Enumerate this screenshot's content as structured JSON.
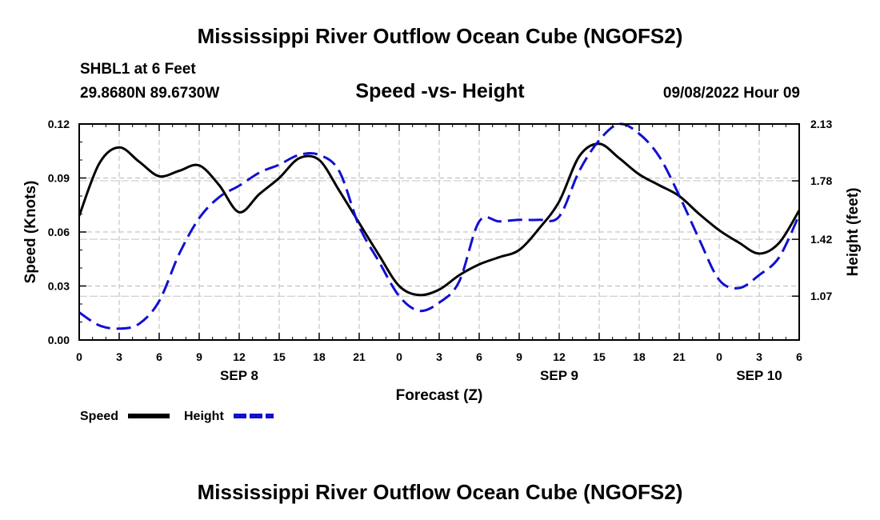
{
  "header": {
    "title": "Mississippi River Outflow Ocean Cube (NGOFS2)",
    "station": "SHBL1 at 6 Feet",
    "coordinates": "29.8680N  89.6730W",
    "subtitle": "Speed -vs- Height",
    "datetime": "09/08/2022 Hour 09"
  },
  "footer": {
    "title": "Mississippi River Outflow Ocean Cube (NGOFS2)"
  },
  "chart_data": {
    "type": "line",
    "title": "Speed -vs- Height",
    "xlabel": "Forecast (Z)",
    "ylabel": "Speed (Knots)",
    "y2label": "Height (feet)",
    "x_unit": "hours from SEP 8 00Z",
    "xlim": [
      0,
      54
    ],
    "ylim": [
      0,
      0.12
    ],
    "y2lim": [
      0.8,
      2.13
    ],
    "x_ticks": [
      {
        "x": 0,
        "label": "0"
      },
      {
        "x": 3,
        "label": "3"
      },
      {
        "x": 6,
        "label": "6"
      },
      {
        "x": 9,
        "label": "9"
      },
      {
        "x": 12,
        "label": "12"
      },
      {
        "x": 15,
        "label": "15"
      },
      {
        "x": 18,
        "label": "18"
      },
      {
        "x": 21,
        "label": "21"
      },
      {
        "x": 24,
        "label": "0"
      },
      {
        "x": 27,
        "label": "3"
      },
      {
        "x": 30,
        "label": "6"
      },
      {
        "x": 33,
        "label": "9"
      },
      {
        "x": 36,
        "label": "12"
      },
      {
        "x": 39,
        "label": "15"
      },
      {
        "x": 42,
        "label": "18"
      },
      {
        "x": 45,
        "label": "21"
      },
      {
        "x": 48,
        "label": "0"
      },
      {
        "x": 51,
        "label": "3"
      },
      {
        "x": 54,
        "label": "6"
      }
    ],
    "date_labels": [
      {
        "x": 12,
        "label": "SEP 8"
      },
      {
        "x": 36,
        "label": "SEP 9"
      },
      {
        "x": 51,
        "label": "SEP 10"
      }
    ],
    "y_ticks": [
      {
        "v": 0.0,
        "label": "0.00"
      },
      {
        "v": 0.03,
        "label": "0.03"
      },
      {
        "v": 0.06,
        "label": "0.06"
      },
      {
        "v": 0.09,
        "label": "0.09"
      },
      {
        "v": 0.12,
        "label": "0.12"
      }
    ],
    "y2_ticks": [
      {
        "v": 1.07,
        "label": "1.07"
      },
      {
        "v": 1.42,
        "label": "1.42"
      },
      {
        "v": 1.78,
        "label": "1.78"
      },
      {
        "v": 2.13,
        "label": "2.13"
      }
    ],
    "series": [
      {
        "name": "Speed",
        "axis": "left",
        "color": "#000000",
        "dash": "solid",
        "x": [
          0,
          1.5,
          3,
          4.5,
          6,
          7.5,
          9,
          10.5,
          12,
          13.5,
          15,
          16.5,
          18,
          19.5,
          21,
          22.5,
          24,
          25.5,
          27,
          28.5,
          30,
          31.5,
          33,
          34.5,
          36,
          37.5,
          39,
          40.5,
          42,
          43.5,
          45,
          46.5,
          48,
          49.5,
          51,
          52.5,
          54
        ],
        "values": [
          0.069,
          0.098,
          0.107,
          0.099,
          0.091,
          0.094,
          0.097,
          0.086,
          0.071,
          0.081,
          0.09,
          0.101,
          0.1,
          0.083,
          0.065,
          0.047,
          0.03,
          0.025,
          0.028,
          0.036,
          0.042,
          0.046,
          0.05,
          0.062,
          0.077,
          0.102,
          0.109,
          0.101,
          0.092,
          0.086,
          0.08,
          0.07,
          0.061,
          0.054,
          0.048,
          0.054,
          0.072
        ]
      },
      {
        "name": "Height",
        "axis": "right",
        "color": "#1010d0",
        "dash": "dashed",
        "x": [
          0,
          1.5,
          3,
          4.5,
          6,
          7.5,
          9,
          10.5,
          12,
          13.5,
          15,
          16.5,
          18,
          19.5,
          21,
          22.5,
          24,
          25.5,
          27,
          28.5,
          30,
          31.5,
          33,
          34.5,
          36,
          37.5,
          39,
          40.5,
          42,
          43.5,
          45,
          46.5,
          48,
          49.5,
          51,
          52.5,
          54
        ],
        "values": [
          0.97,
          0.89,
          0.87,
          0.9,
          1.04,
          1.33,
          1.55,
          1.68,
          1.75,
          1.83,
          1.88,
          1.94,
          1.94,
          1.84,
          1.5,
          1.28,
          1.07,
          0.98,
          1.03,
          1.16,
          1.53,
          1.53,
          1.54,
          1.54,
          1.56,
          1.84,
          2.03,
          2.13,
          2.07,
          1.93,
          1.69,
          1.42,
          1.17,
          1.12,
          1.2,
          1.31,
          1.57
        ]
      }
    ],
    "legend": [
      {
        "label": "Speed",
        "color": "#000000",
        "dash": "solid"
      },
      {
        "label": "Height",
        "color": "#1010d0",
        "dash": "dashed"
      }
    ]
  }
}
